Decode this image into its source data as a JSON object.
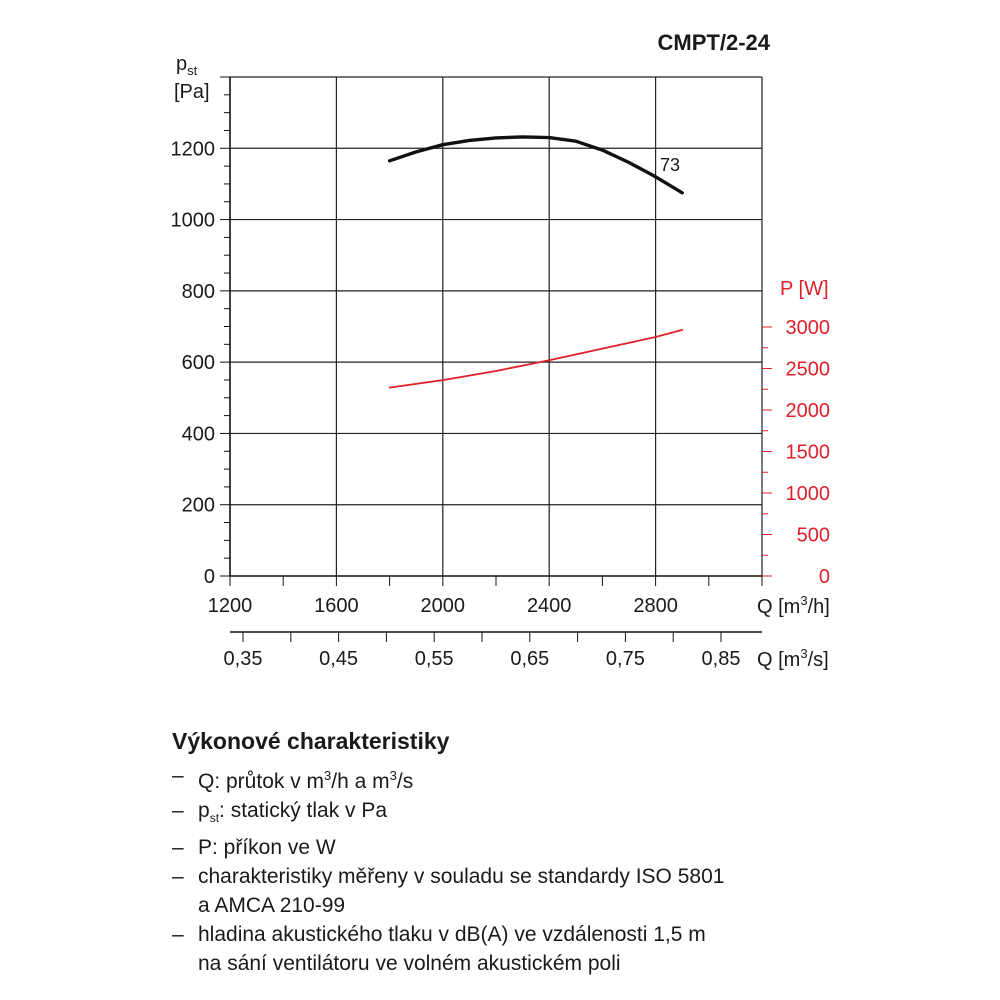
{
  "chart_data": {
    "type": "line",
    "title": "CMPT/2-24",
    "y_left": {
      "label_main": "p",
      "label_sub": "st",
      "unit": "[Pa]",
      "ticks": [
        0,
        200,
        400,
        600,
        800,
        1000,
        1200
      ],
      "range": [
        0,
        1400
      ]
    },
    "y_right": {
      "label": "P [W]",
      "ticks": [
        0,
        500,
        1000,
        1500,
        2000,
        2500,
        3000
      ],
      "range": [
        0,
        3000
      ],
      "color": "#e0202a"
    },
    "x_top": {
      "label_main": "Q [m",
      "label_sup": "3",
      "label_end": "/h]",
      "ticks": [
        1200,
        1600,
        2000,
        2400,
        2800
      ],
      "range": [
        1200,
        3200
      ]
    },
    "x_bottom": {
      "label_main": "Q [m",
      "label_sup": "3",
      "label_end": "/s]",
      "ticks": [
        "0,35",
        "0,45",
        "0,55",
        "0,65",
        "0,75",
        "0,85"
      ]
    },
    "grid": true,
    "series": [
      {
        "axis": "left",
        "color": "#111111",
        "annotation": "73",
        "x": [
          1800,
          1900,
          2000,
          2100,
          2200,
          2300,
          2400,
          2500,
          2600,
          2700,
          2800,
          2900
        ],
        "y": [
          1165,
          1190,
          1210,
          1222,
          1229,
          1232,
          1230,
          1220,
          1195,
          1160,
          1120,
          1075
        ]
      },
      {
        "axis": "right",
        "color": "#e0202a",
        "x": [
          1800,
          2000,
          2200,
          2400,
          2600,
          2800,
          2900
        ],
        "y": [
          2270,
          2360,
          2470,
          2600,
          2740,
          2880,
          2965
        ]
      }
    ]
  },
  "legend": {
    "title": "Výkonové charakteristiky",
    "items": [
      {
        "pre": "Q: průtok v m",
        "sup": "3",
        "mid": "/h a m",
        "sup2": "3",
        "post": "/s"
      },
      {
        "pre": "p",
        "sub": "st",
        "post": ": statický tlak v Pa"
      },
      {
        "pre": "P: příkon ve W"
      },
      {
        "pre": "charakteristiky měřeny v souladu se standardy ISO 5801",
        "line2": "a AMCA 210-99"
      },
      {
        "pre": "hladina akustického tlaku v dB(A) ve vzdálenosti 1,5 m",
        "line2": "na sání ventilátoru ve volném akustickém poli"
      }
    ]
  }
}
